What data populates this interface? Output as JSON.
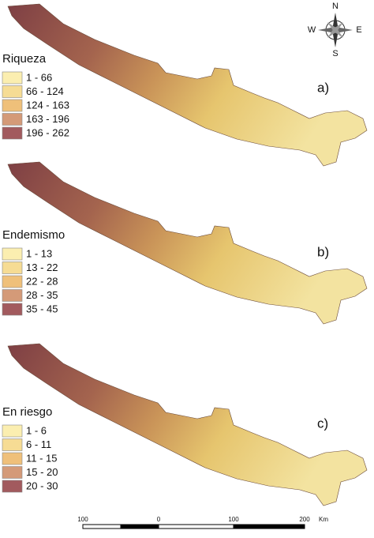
{
  "compass": {
    "north": "N",
    "south": "S",
    "east": "E",
    "west": "W"
  },
  "panels": [
    {
      "label": "a)",
      "legend_title": "Riqueza",
      "classes": [
        "1 - 66",
        "66 - 124",
        "124 - 163",
        "163 - 196",
        "196 - 262"
      ]
    },
    {
      "label": "b)",
      "legend_title": "Endemismo",
      "classes": [
        "1 - 13",
        "13 - 22",
        "22 - 28",
        "28 - 35",
        "35 - 45"
      ]
    },
    {
      "label": "c)",
      "legend_title": "En riesgo",
      "classes": [
        "1 - 6",
        "6 - 11",
        "11 - 15",
        "15 - 20",
        "20 - 30"
      ]
    }
  ],
  "class_colors": [
    "#fbeeb0",
    "#f6dc94",
    "#efc07a",
    "#d49a78",
    "#a25a5e"
  ],
  "scale_bar": {
    "labels": [
      "100",
      "0",
      "100",
      "200"
    ],
    "unit": "Km"
  }
}
